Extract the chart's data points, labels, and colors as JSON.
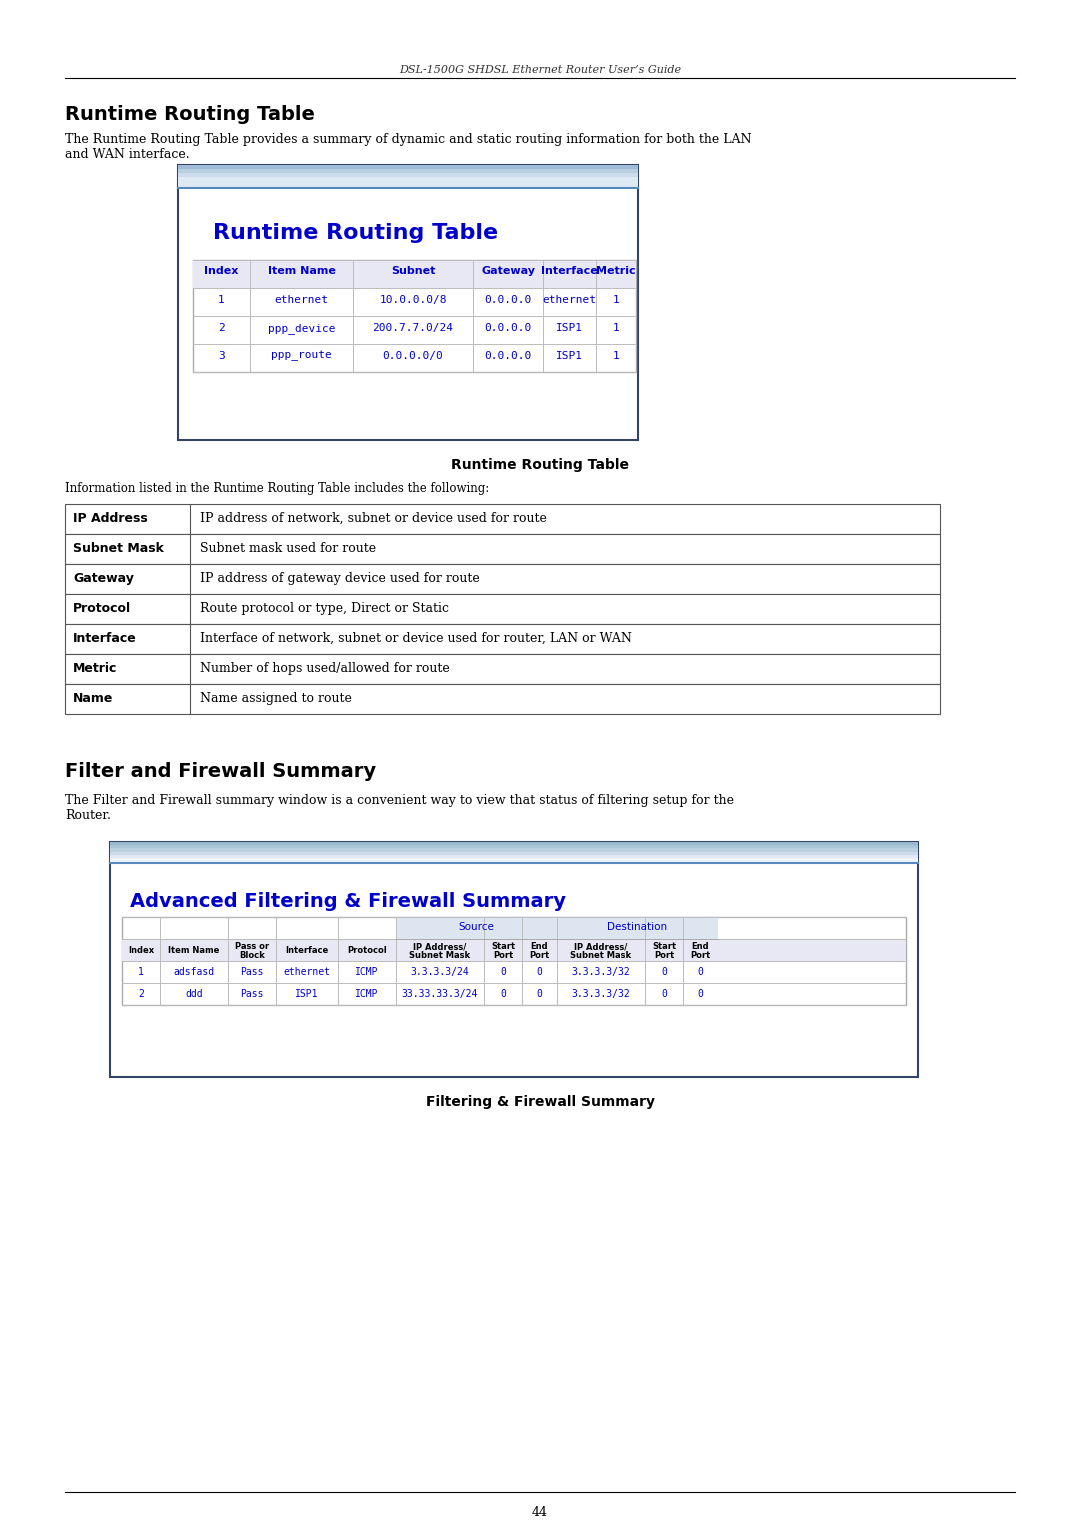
{
  "page_title": "DSL-1500G SHDSL Ethernet Router User’s Guide",
  "page_number": "44",
  "bg_color": "#ffffff",
  "section1_title": "Runtime Routing Table",
  "section1_body": "The Runtime Routing Table provides a summary of dynamic and static routing information for both the LAN\nand WAN interface.",
  "routing_table_title": "Runtime Routing Table",
  "routing_table_headers": [
    "Index",
    "Item Name",
    "Subnet",
    "Gateway",
    "Interface",
    "Metric"
  ],
  "routing_table_rows": [
    [
      "1",
      "ethernet",
      "10.0.0.0/8",
      "0.0.0.0",
      "ethernet",
      "1"
    ],
    [
      "2",
      "ppp_device",
      "200.7.7.0/24",
      "0.0.0.0",
      "ISP1",
      "1"
    ],
    [
      "3",
      "ppp_route",
      "0.0.0.0/0",
      "0.0.0.0",
      "ISP1",
      "1"
    ]
  ],
  "routing_table_caption": "Runtime Routing Table",
  "info_text": "Information listed in the Runtime Routing Table includes the following:",
  "info_table_rows": [
    [
      "IP Address",
      "IP address of network, subnet or device used for route"
    ],
    [
      "Subnet Mask",
      "Subnet mask used for route"
    ],
    [
      "Gateway",
      "IP address of gateway device used for route"
    ],
    [
      "Protocol",
      "Route protocol or type, Direct or Static"
    ],
    [
      "Interface",
      "Interface of network, subnet or device used for router, LAN or WAN"
    ],
    [
      "Metric",
      "Number of hops used/allowed for route"
    ],
    [
      "Name",
      "Name assigned to route"
    ]
  ],
  "section2_title": "Filter and Firewall Summary",
  "section2_body": "The Filter and Firewall summary window is a convenient way to view that status of filtering setup for the\nRouter.",
  "firewall_table_title": "Advanced Filtering & Firewall Summary",
  "firewall_table_rows": [
    [
      "1",
      "adsfasd",
      "Pass",
      "ethernet",
      "ICMP",
      "3.3.3.3/24",
      "0",
      "0",
      "3.3.3.3/32",
      "0",
      "0"
    ],
    [
      "2",
      "ddd",
      "Pass",
      "ISP1",
      "ICMP",
      "33.33.33.3/24",
      "0",
      "0",
      "3.3.3.3/32",
      "0",
      "0"
    ]
  ],
  "firewall_table_caption": "Filtering & Firewall Summary",
  "blue_color": "#0000cc",
  "table_border_color": "#999999",
  "table_header_bg": "#e8e8f0",
  "screen_border_color": "#6688aa",
  "screen_bg_top": "#b8d0e8",
  "screen_bg": "#ffffff"
}
